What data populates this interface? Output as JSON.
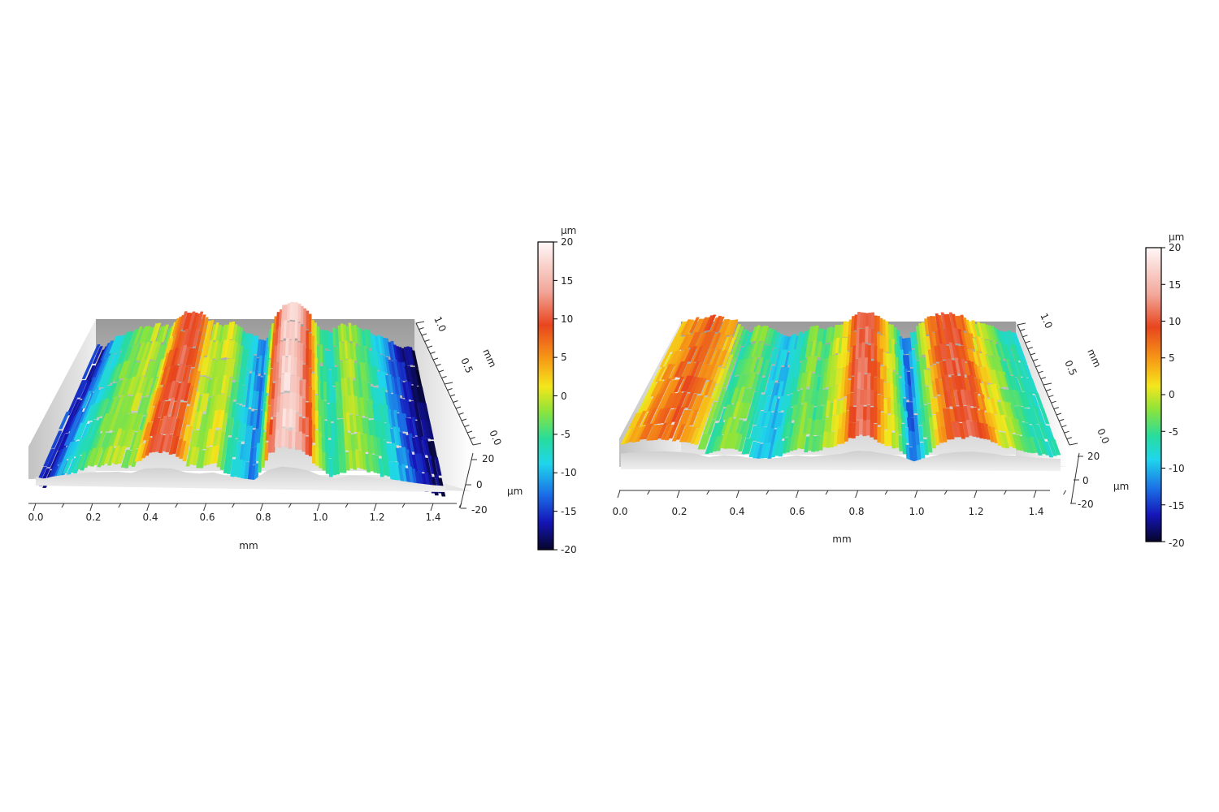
{
  "chart_data": [
    {
      "type": "heatmap",
      "view": "3d-surface",
      "x_label": "mm",
      "x_ticks": [
        "0.0",
        "0.2",
        "0.4",
        "0.6",
        "0.8",
        "1.0",
        "1.2",
        "1.4"
      ],
      "y_label": "mm",
      "y_ticks": [
        "0.0",
        "0.5",
        "1.0"
      ],
      "z_label": "µm",
      "z_ticks": [
        "-20",
        "0",
        "20"
      ],
      "colorbar": {
        "unit": "µm",
        "min": -20,
        "max": 20,
        "ticks": [
          "20",
          "15",
          "10",
          "5",
          "0",
          "-5",
          "-10",
          "-15",
          "-20"
        ]
      },
      "x_range": [
        0,
        1.5
      ],
      "z_range": [
        -20,
        20
      ],
      "height_profile": {
        "x": [
          0.0,
          0.03,
          0.06,
          0.1,
          0.15,
          0.2,
          0.25,
          0.3,
          0.35,
          0.4,
          0.45,
          0.5,
          0.55,
          0.6,
          0.65,
          0.7,
          0.75,
          0.8,
          0.85,
          0.9,
          0.95,
          1.0,
          1.05,
          1.1,
          1.15,
          1.2,
          1.25,
          1.3,
          1.35,
          1.4,
          1.45,
          1.5
        ],
        "z": [
          -13,
          -17,
          -12,
          -8,
          -5,
          -1,
          0,
          1,
          -1,
          9,
          11,
          10,
          2,
          0,
          3,
          -4,
          -9,
          -12,
          10,
          18,
          16,
          10,
          -2,
          -6,
          1,
          0,
          -3,
          -6,
          -10,
          -14,
          -17,
          -19
        ]
      }
    },
    {
      "type": "heatmap",
      "view": "3d-surface",
      "x_label": "mm",
      "x_ticks": [
        "0.0",
        "0.2",
        "0.4",
        "0.6",
        "0.8",
        "1.0",
        "1.2",
        "1.4"
      ],
      "y_label": "mm",
      "y_ticks": [
        "0.0",
        "0.5",
        "1.0"
      ],
      "z_label": "µm",
      "z_ticks": [
        "-20",
        "0",
        "20"
      ],
      "colorbar": {
        "unit": "µm",
        "min": -20,
        "max": 20,
        "ticks": [
          "20",
          "15",
          "10",
          "5",
          "0",
          "-5",
          "-10",
          "-15",
          "-20"
        ]
      },
      "x_range": [
        0,
        1.5
      ],
      "z_range": [
        -20,
        20
      ],
      "height_profile": {
        "x": [
          0.0,
          0.05,
          0.1,
          0.15,
          0.2,
          0.25,
          0.3,
          0.35,
          0.4,
          0.45,
          0.5,
          0.55,
          0.6,
          0.65,
          0.7,
          0.75,
          0.8,
          0.85,
          0.9,
          0.95,
          1.0,
          1.05,
          1.1,
          1.15,
          1.2,
          1.25,
          1.3,
          1.35,
          1.4,
          1.45,
          1.5
        ],
        "z": [
          3,
          6,
          8,
          9,
          7,
          4,
          -5,
          0,
          -2,
          -8,
          -9,
          -5,
          0,
          -3,
          1,
          4,
          12,
          11,
          5,
          0,
          -14,
          -3,
          6,
          10,
          11,
          8,
          3,
          1,
          -3,
          -5,
          -6
        ]
      }
    }
  ]
}
